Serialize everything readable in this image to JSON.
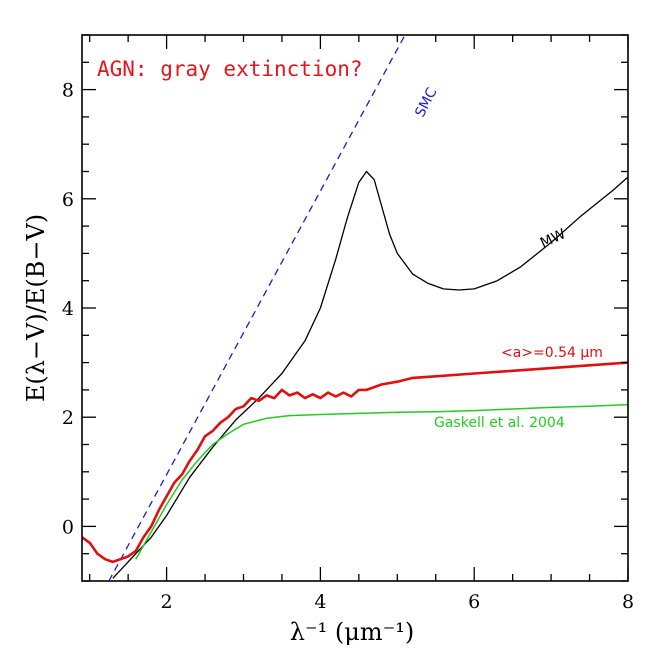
{
  "chart_data": {
    "type": "line",
    "title": "AGN: gray extinction?",
    "xlabel": "λ⁻¹ (μm⁻¹)",
    "ylabel": "E(λ−V)/E(B−V)",
    "xlim": [
      0.9,
      8.0
    ],
    "ylim": [
      -1.0,
      9.0
    ],
    "xticks": [
      2,
      4,
      6,
      8
    ],
    "yticks": [
      0,
      2,
      4,
      6,
      8
    ],
    "grid": false,
    "colors": {
      "title": "#e8141c",
      "smc": "#1c1ccf",
      "mw": "#000000",
      "agn": "#e01010",
      "gaskell": "#22cc22"
    },
    "series": [
      {
        "name": "SMC",
        "style": "dashed",
        "color": "#1c1ccf",
        "x": [
          1.25,
          5.1
        ],
        "y": [
          -1.0,
          9.0
        ]
      },
      {
        "name": "MW",
        "style": "solid",
        "color": "#000000",
        "x": [
          1.3,
          1.6,
          1.8,
          2.0,
          2.3,
          2.6,
          2.9,
          3.2,
          3.5,
          3.8,
          4.0,
          4.2,
          4.35,
          4.5,
          4.6,
          4.7,
          4.8,
          4.9,
          5.0,
          5.2,
          5.4,
          5.6,
          5.8,
          6.0,
          6.3,
          6.6,
          7.0,
          7.4,
          7.8,
          8.0
        ],
        "y": [
          -0.95,
          -0.5,
          -0.2,
          0.2,
          0.9,
          1.45,
          1.95,
          2.35,
          2.8,
          3.4,
          4.0,
          4.9,
          5.65,
          6.3,
          6.5,
          6.35,
          5.85,
          5.35,
          5.0,
          4.62,
          4.45,
          4.35,
          4.33,
          4.35,
          4.5,
          4.75,
          5.2,
          5.7,
          6.15,
          6.4
        ]
      },
      {
        "name": "<a>=0.54 μm",
        "style": "solid",
        "color": "#e01010",
        "x": [
          0.9,
          1.0,
          1.1,
          1.2,
          1.3,
          1.4,
          1.5,
          1.6,
          1.7,
          1.8,
          1.9,
          2.0,
          2.1,
          2.2,
          2.3,
          2.4,
          2.5,
          2.6,
          2.7,
          2.8,
          2.9,
          3.0,
          3.1,
          3.2,
          3.3,
          3.4,
          3.5,
          3.6,
          3.7,
          3.8,
          3.9,
          4.0,
          4.1,
          4.2,
          4.3,
          4.4,
          4.5,
          4.6,
          4.8,
          5.0,
          5.2,
          5.5,
          6.0,
          6.5,
          7.0,
          7.5,
          8.0
        ],
        "y": [
          -0.2,
          -0.3,
          -0.5,
          -0.6,
          -0.65,
          -0.6,
          -0.55,
          -0.45,
          -0.2,
          0.0,
          0.3,
          0.55,
          0.8,
          0.95,
          1.2,
          1.4,
          1.65,
          1.75,
          1.9,
          2.0,
          2.15,
          2.2,
          2.35,
          2.3,
          2.4,
          2.35,
          2.5,
          2.4,
          2.45,
          2.35,
          2.42,
          2.35,
          2.45,
          2.38,
          2.45,
          2.38,
          2.5,
          2.5,
          2.6,
          2.65,
          2.72,
          2.75,
          2.8,
          2.85,
          2.9,
          2.95,
          3.0
        ]
      },
      {
        "name": "Gaskell et al. 2004",
        "style": "solid",
        "color": "#22cc22",
        "x": [
          1.6,
          1.8,
          2.0,
          2.2,
          2.4,
          2.6,
          2.8,
          3.0,
          3.3,
          3.6,
          4.0,
          4.5,
          5.0,
          5.5,
          6.0,
          6.5,
          7.0,
          7.5,
          8.0
        ],
        "y": [
          -0.6,
          -0.1,
          0.4,
          0.85,
          1.2,
          1.5,
          1.7,
          1.87,
          1.98,
          2.03,
          2.05,
          2.07,
          2.09,
          2.1,
          2.12,
          2.15,
          2.18,
          2.2,
          2.23
        ]
      }
    ],
    "labels": {
      "smc": "SMC",
      "mw": "MW",
      "agn": "<a>=0.54 μm",
      "gaskell": "Gaskell et al. 2004"
    }
  }
}
